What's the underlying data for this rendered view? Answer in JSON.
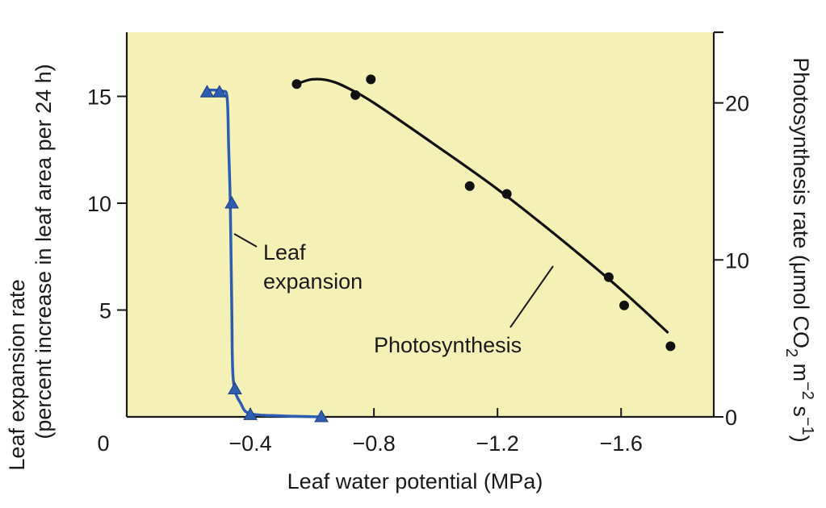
{
  "colors": {
    "plot_background": "#f5f1b6",
    "axis_color": "#1a1a1a",
    "photosynthesis_line": "#111111",
    "leaf_expansion_line": "#2d5cb0"
  },
  "chart_data": {
    "type": "line",
    "title": "",
    "x_axis": {
      "label": "Leaf water potential (MPa)",
      "range": [
        0,
        -1.9
      ],
      "ticks": [
        -0.4,
        -0.8,
        -1.2,
        -1.6
      ],
      "tick_labels": [
        "−0.4",
        "−0.8",
        "−1.2",
        "−1.6"
      ],
      "origin_label": "0"
    },
    "y_left": {
      "label_line1": "Leaf expansion rate",
      "label_line2": "(percent increase in leaf area per 24 h)",
      "range": [
        0,
        18
      ],
      "ticks": [
        5,
        10,
        15
      ],
      "tick_labels": [
        "5",
        "10",
        "15"
      ]
    },
    "y_right": {
      "label_main": "Photosynthesis rate (μmol CO",
      "label_sub1": "2",
      "label_mid": " m",
      "label_sup1": "−2",
      "label_mid2": " s",
      "label_sup2": "−1",
      "label_end": ")",
      "range": [
        0,
        24.5
      ],
      "ticks": [
        0,
        10,
        20
      ],
      "tick_labels": [
        "0",
        "10",
        "20"
      ]
    },
    "series": [
      {
        "name": "Leaf expansion",
        "axis": "left",
        "marker": "triangle",
        "points": [
          {
            "x": -0.26,
            "y": 15.2
          },
          {
            "x": -0.3,
            "y": 15.2
          },
          {
            "x": -0.34,
            "y": 10.0
          },
          {
            "x": -0.35,
            "y": 1.3
          },
          {
            "x": -0.4,
            "y": 0.1
          },
          {
            "x": -0.63,
            "y": 0.0
          }
        ],
        "curve": [
          {
            "x": -0.26,
            "y": 15.3
          },
          {
            "x": -0.31,
            "y": 15.25
          },
          {
            "x": -0.325,
            "y": 14.9
          },
          {
            "x": -0.33,
            "y": 12.5
          },
          {
            "x": -0.335,
            "y": 10.0
          },
          {
            "x": -0.34,
            "y": 5.0
          },
          {
            "x": -0.345,
            "y": 1.7
          },
          {
            "x": -0.37,
            "y": 0.6
          },
          {
            "x": -0.4,
            "y": 0.15
          },
          {
            "x": -0.5,
            "y": 0.05
          },
          {
            "x": -0.63,
            "y": 0.0
          }
        ]
      },
      {
        "name": "Photosynthesis",
        "axis": "right",
        "marker": "circle",
        "points": [
          {
            "x": -0.55,
            "y": 21.2
          },
          {
            "x": -0.74,
            "y": 20.5
          },
          {
            "x": -0.79,
            "y": 21.5
          },
          {
            "x": -1.11,
            "y": 14.7
          },
          {
            "x": -1.23,
            "y": 14.2
          },
          {
            "x": -1.56,
            "y": 8.9
          },
          {
            "x": -1.61,
            "y": 7.1
          },
          {
            "x": -1.76,
            "y": 4.5
          }
        ],
        "curve": [
          {
            "x": -0.55,
            "y": 21.2
          },
          {
            "x": -0.6,
            "y": 21.5
          },
          {
            "x": -0.66,
            "y": 21.4
          },
          {
            "x": -0.72,
            "y": 20.9
          },
          {
            "x": -0.8,
            "y": 20.0
          },
          {
            "x": -1.0,
            "y": 17.3
          },
          {
            "x": -1.2,
            "y": 14.5
          },
          {
            "x": -1.4,
            "y": 11.4
          },
          {
            "x": -1.6,
            "y": 8.1
          },
          {
            "x": -1.75,
            "y": 5.4
          }
        ]
      }
    ],
    "annotations": [
      {
        "text_lines": [
          "Leaf",
          "expansion"
        ],
        "series": "Leaf expansion",
        "pointer_to": {
          "x": -0.34,
          "y": 7.0
        }
      },
      {
        "text_lines": [
          "Photosynthesis"
        ],
        "series": "Photosynthesis",
        "pointer_to": {
          "x": -1.42,
          "y": 11.0
        }
      }
    ]
  }
}
